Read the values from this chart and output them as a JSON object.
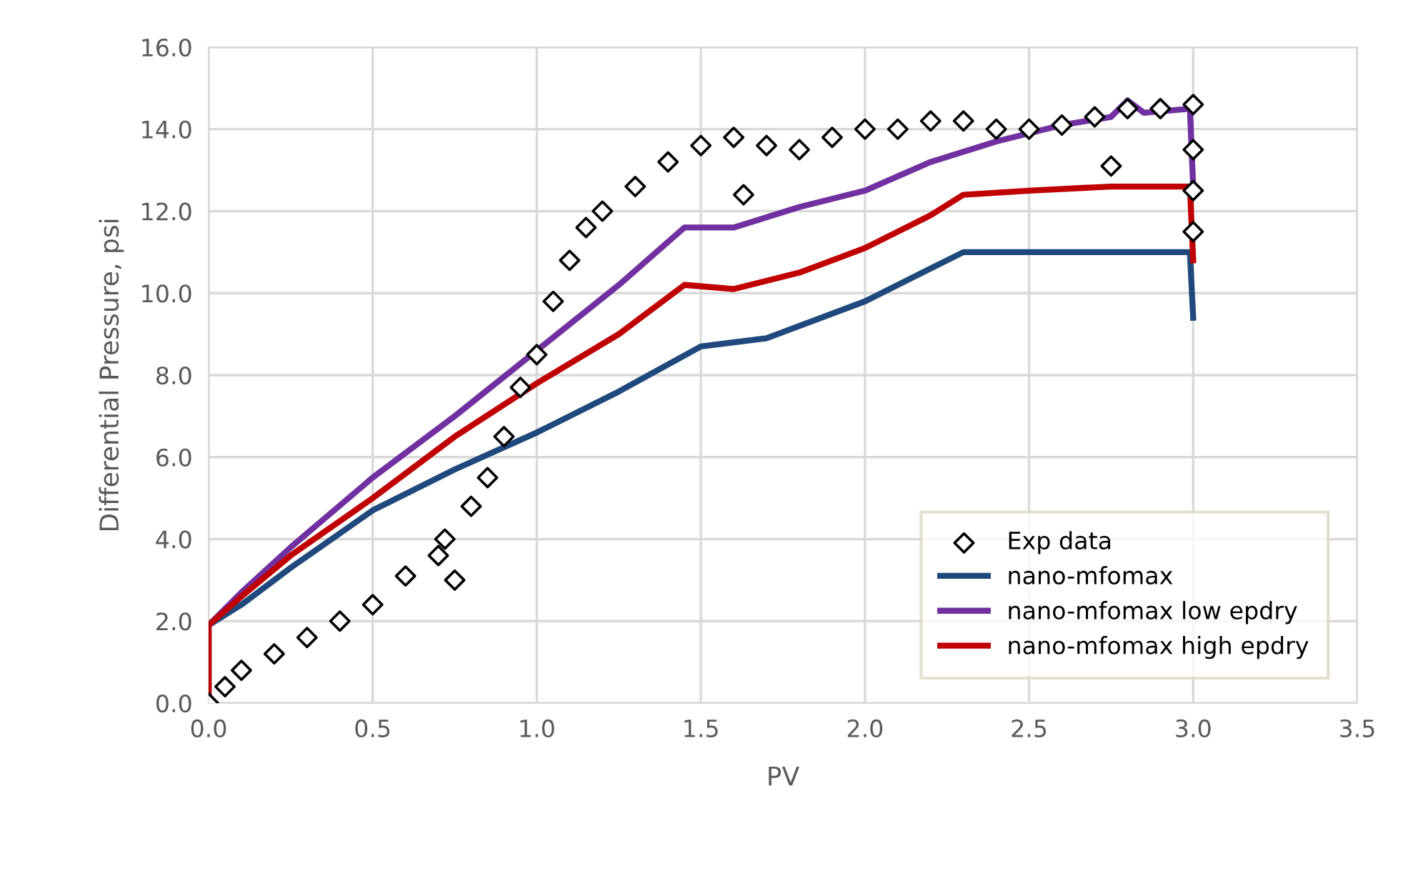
{
  "chart_data": {
    "type": "line",
    "xlabel": "PV",
    "ylabel": "Differential Pressure, psi",
    "xlim": [
      0,
      3.5
    ],
    "ylim": [
      0,
      16
    ],
    "xticks": [
      {
        "value": 0,
        "label": "0.0"
      },
      {
        "value": 0.5,
        "label": "0.5"
      },
      {
        "value": 1,
        "label": "1.0"
      },
      {
        "value": 1.5,
        "label": "1.5"
      },
      {
        "value": 2,
        "label": "2.0"
      },
      {
        "value": 2.5,
        "label": "2.5"
      },
      {
        "value": 3,
        "label": "3.0"
      },
      {
        "value": 3.5,
        "label": "3.5"
      }
    ],
    "yticks": [
      {
        "value": 0,
        "label": "0.0"
      },
      {
        "value": 2,
        "label": "2.0"
      },
      {
        "value": 4,
        "label": "4.0"
      },
      {
        "value": 6,
        "label": "6.0"
      },
      {
        "value": 8,
        "label": "8.0"
      },
      {
        "value": 10,
        "label": "10.0"
      },
      {
        "value": 12,
        "label": "12.0"
      },
      {
        "value": 14,
        "label": "14.0"
      },
      {
        "value": 16,
        "label": "16.0"
      }
    ],
    "grid": true,
    "legend": "bottom right",
    "series": [
      {
        "name": "Exp data",
        "type": "scatter",
        "marker": "diamond",
        "color": "#000000",
        "x": [
          0,
          0.05,
          0.1,
          0.2,
          0.3,
          0.4,
          0.5,
          0.6,
          0.7,
          0.72,
          0.75,
          0.8,
          0.85,
          0.9,
          0.95,
          1.0,
          1.05,
          1.1,
          1.15,
          1.2,
          1.3,
          1.4,
          1.5,
          1.6,
          1.63,
          1.7,
          1.8,
          1.9,
          2.0,
          2.1,
          2.2,
          2.3,
          2.4,
          2.5,
          2.6,
          2.7,
          2.75,
          2.8,
          2.9,
          3.0,
          3.0,
          3.0,
          3.0
        ],
        "values": [
          0,
          0.4,
          0.8,
          1.2,
          1.6,
          2.0,
          2.4,
          3.1,
          3.6,
          4.0,
          3.0,
          4.8,
          5.5,
          6.5,
          7.7,
          8.5,
          9.8,
          10.8,
          11.6,
          12.0,
          12.6,
          13.2,
          13.6,
          13.8,
          12.4,
          13.6,
          13.5,
          13.8,
          14.0,
          14.0,
          14.2,
          14.2,
          14.0,
          14.0,
          14.1,
          14.3,
          13.1,
          14.5,
          14.5,
          14.6,
          13.5,
          12.5,
          11.5
        ]
      },
      {
        "name": "nano-mfomax",
        "color": "#1f497d",
        "x": [
          0,
          0.0,
          0.1,
          0.25,
          0.5,
          0.75,
          1.0,
          1.25,
          1.5,
          1.7,
          2.0,
          2.2,
          2.3,
          2.5,
          2.75,
          2.99,
          3.0
        ],
        "values": [
          0,
          1.9,
          2.4,
          3.3,
          4.7,
          5.7,
          6.6,
          7.6,
          8.7,
          8.9,
          9.8,
          10.6,
          11.0,
          11.0,
          11.0,
          11.0,
          9.4
        ]
      },
      {
        "name": "nano-mfomax low epdry",
        "color": "#7030a0",
        "x": [
          0,
          0.0,
          0.1,
          0.25,
          0.5,
          0.75,
          1.0,
          1.25,
          1.45,
          1.6,
          1.8,
          2.0,
          2.2,
          2.4,
          2.6,
          2.75,
          2.8,
          2.85,
          2.99,
          3.0
        ],
        "values": [
          0,
          1.9,
          2.7,
          3.8,
          5.5,
          7.0,
          8.6,
          10.2,
          11.6,
          11.6,
          12.1,
          12.5,
          13.2,
          13.7,
          14.1,
          14.3,
          14.7,
          14.4,
          14.5,
          12.6
        ]
      },
      {
        "name": "nano-mfomax high epdry",
        "color": "#c00000",
        "x": [
          0,
          0.0,
          0.1,
          0.25,
          0.5,
          0.75,
          1.0,
          1.25,
          1.45,
          1.6,
          1.8,
          2.0,
          2.2,
          2.3,
          2.5,
          2.75,
          2.99,
          3.0
        ],
        "values": [
          0,
          1.9,
          2.6,
          3.6,
          5.0,
          6.5,
          7.8,
          9.0,
          10.2,
          10.1,
          10.5,
          11.1,
          11.9,
          12.4,
          12.5,
          12.6,
          12.6,
          10.8
        ]
      }
    ]
  }
}
